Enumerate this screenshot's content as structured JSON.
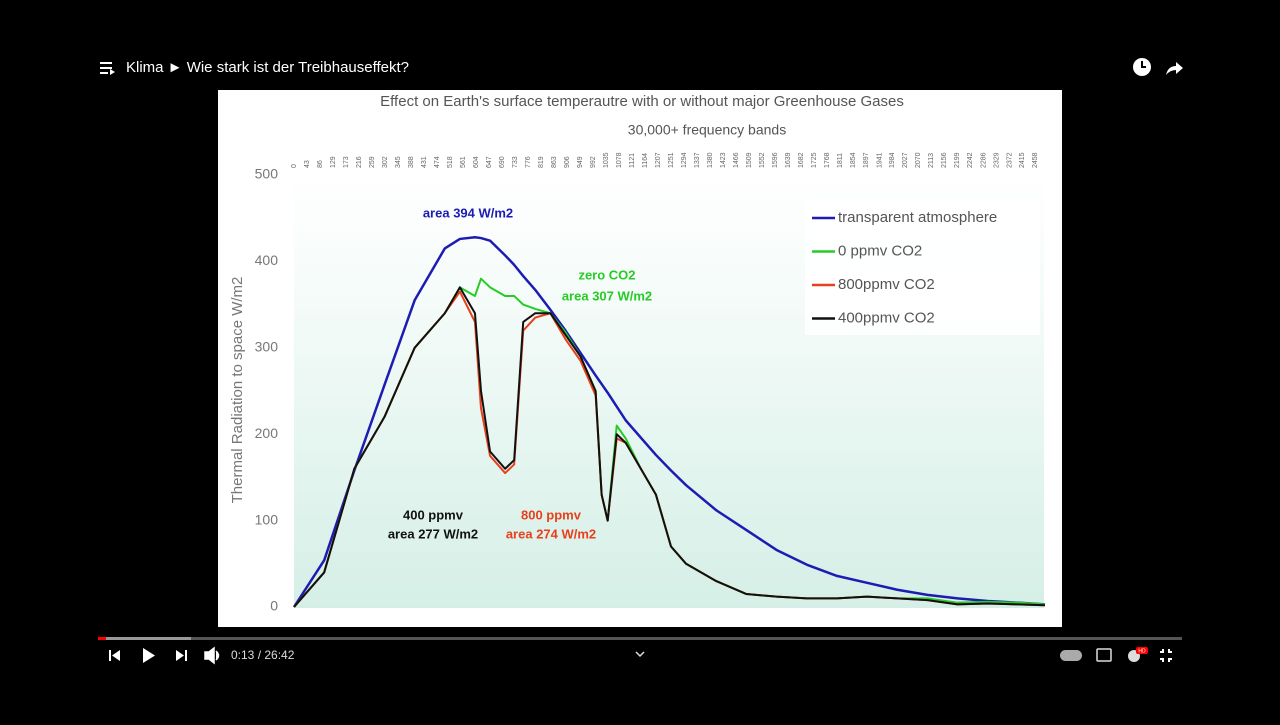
{
  "player": {
    "title": "Klima ► Wie stark ist der Treibhauseffekt?",
    "time": "0:13 / 26:42",
    "badge": "HD"
  },
  "chart_data": {
    "type": "line",
    "title": "Effect on Earth's surface temperautre with or without major Greenhouse Gases",
    "subtitle": "30,000+ frequency bands",
    "y_label": "Thermal Radiation to space  W/m2",
    "x": [
      0,
      100,
      200,
      300,
      400,
      500,
      550,
      600,
      620,
      650,
      700,
      730,
      760,
      800,
      850,
      900,
      950,
      1000,
      1020,
      1040,
      1070,
      1100,
      1150,
      1200,
      1250,
      1300,
      1400,
      1500,
      1600,
      1700,
      1800,
      1900,
      2000,
      2100,
      2200,
      2300,
      2400,
      2490
    ],
    "xlim": [
      0,
      2490
    ],
    "xticks": [
      0,
      43,
      86,
      129,
      173,
      216,
      259,
      302,
      345,
      388,
      431,
      474,
      518,
      561,
      604,
      647,
      690,
      733,
      776,
      819,
      863,
      906,
      949,
      992,
      1035,
      1078,
      1121,
      1164,
      1207,
      1251,
      1294,
      1337,
      1380,
      1423,
      1466,
      1509,
      1552,
      1596,
      1639,
      1682,
      1725,
      1768,
      1811,
      1854,
      1897,
      1941,
      1984,
      2027,
      2070,
      2113,
      2156,
      2199,
      2242,
      2286,
      2329,
      2372,
      2415,
      2458
    ],
    "ylim": [
      0,
      500
    ],
    "yticks": [
      0,
      100,
      200,
      300,
      400,
      500
    ],
    "grid": false,
    "legend": "upper right",
    "series": [
      {
        "name": "transparent atmosphere",
        "color": "#1c1cb4",
        "values": [
          0,
          54,
          158,
          257,
          355,
          415,
          426,
          428,
          427,
          424,
          407,
          396,
          383,
          367,
          344,
          320,
          294,
          268,
          258,
          248,
          232,
          216,
          196,
          176,
          158,
          141,
          112,
          89,
          66,
          49,
          36,
          28,
          20,
          14,
          10,
          7,
          5,
          3
        ]
      },
      {
        "name": "0 ppmv CO2",
        "color": "#26cc26",
        "values": [
          0,
          40,
          160,
          220,
          300,
          340,
          370,
          360,
          380,
          370,
          360,
          360,
          350,
          345,
          340,
          318,
          290,
          250,
          130,
          100,
          210,
          195,
          160,
          130,
          70,
          50,
          30,
          15,
          12,
          10,
          10,
          12,
          10,
          10,
          5,
          6,
          5,
          3
        ]
      },
      {
        "name": "800ppmv CO2",
        "color": "#e8401a",
        "values": [
          0,
          40,
          160,
          220,
          300,
          340,
          365,
          330,
          230,
          175,
          155,
          165,
          320,
          335,
          340,
          310,
          285,
          245,
          130,
          100,
          195,
          190,
          160,
          130,
          70,
          50,
          30,
          15,
          12,
          10,
          10,
          12,
          10,
          8,
          3,
          4,
          3,
          2
        ]
      },
      {
        "name": "400ppmv CO2",
        "color": "#111111",
        "values": [
          0,
          40,
          160,
          220,
          300,
          340,
          370,
          340,
          250,
          180,
          160,
          170,
          330,
          340,
          340,
          315,
          290,
          250,
          130,
          100,
          200,
          190,
          160,
          130,
          70,
          50,
          30,
          15,
          12,
          10,
          10,
          12,
          10,
          8,
          3,
          4,
          3,
          2
        ]
      }
    ],
    "annotations": [
      {
        "text": "area 394 W/m2",
        "color": "#1c1cb4"
      },
      {
        "text": "zero CO2",
        "color": "#26cc26"
      },
      {
        "text": "area 307 W/m2",
        "color": "#26cc26"
      },
      {
        "text": "400 ppmv",
        "color": "#111111"
      },
      {
        "text": "area 277 W/m2",
        "color": "#111111"
      },
      {
        "text": "800 ppmv",
        "color": "#e8401a"
      },
      {
        "text": "area 274 W/m2",
        "color": "#e8401a"
      }
    ]
  }
}
